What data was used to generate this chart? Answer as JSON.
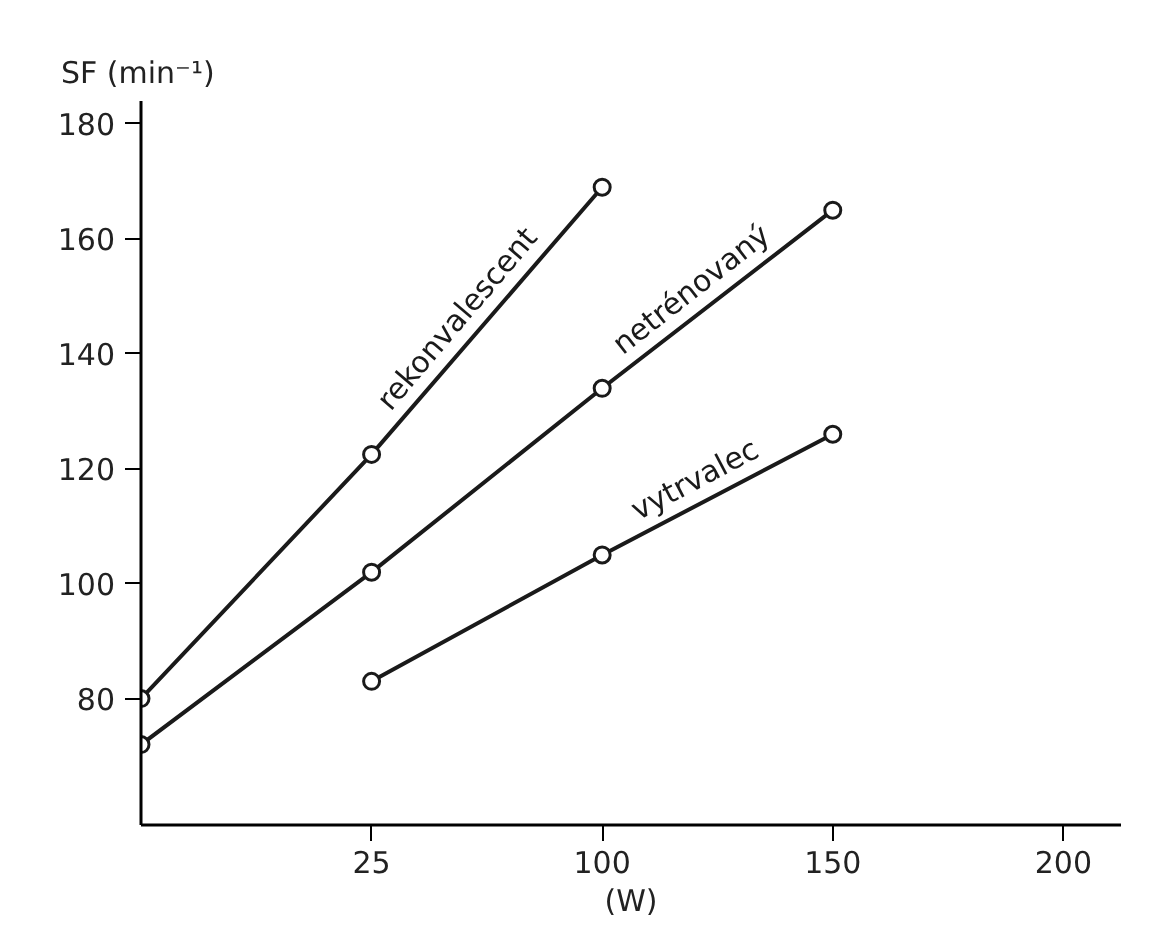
{
  "chart_data": {
    "type": "line",
    "ylabel": "SF (min⁻¹)",
    "xlabel": "(W)",
    "categories": [
      null,
      "25",
      "100",
      "150",
      "200"
    ],
    "series": [
      {
        "name": "rekonvalescent",
        "color": "#1a1a1a",
        "values": [
          80,
          122.5,
          169,
          null,
          null
        ]
      },
      {
        "name": "netrénovaný",
        "color": "#1a1a1a",
        "values": [
          72,
          102,
          134,
          165,
          null
        ]
      },
      {
        "name": "vytrvalec",
        "color": "#1a1a1a",
        "values": [
          null,
          83,
          105,
          126,
          null
        ]
      }
    ],
    "ylim": [
      58,
      184
    ],
    "yticks": [
      80,
      100,
      120,
      140,
      160,
      180
    ],
    "marker": "circle",
    "line_style": "solid",
    "grid": false
  }
}
